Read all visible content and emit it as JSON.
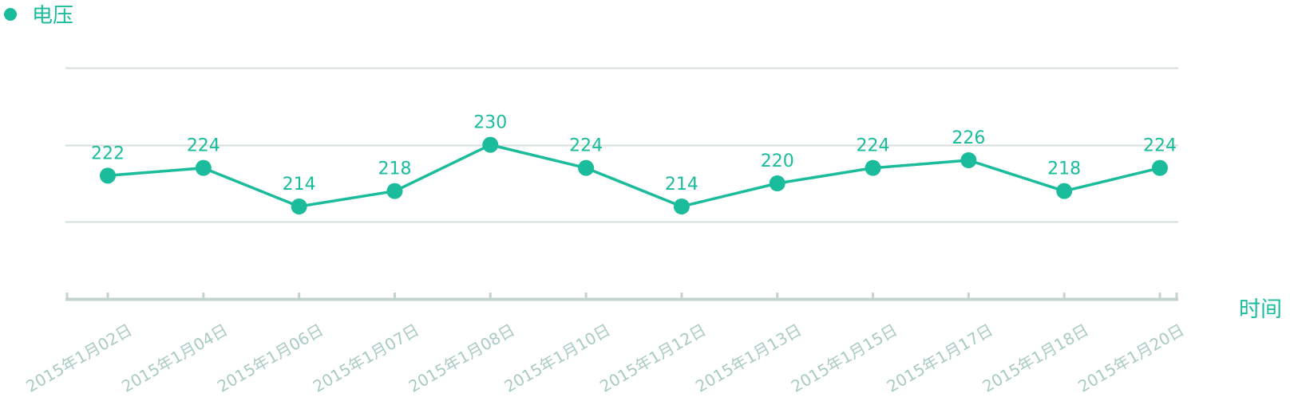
{
  "chart_data": {
    "type": "line",
    "title": "",
    "xlabel": "时间",
    "ylabel": "",
    "ylim": [
      190,
      250
    ],
    "grid": true,
    "legend": "top-left",
    "categories": [
      "2015年1月02日",
      "2015年1月04日",
      "2015年1月06日",
      "2015年1月07日",
      "2015年1月08日",
      "2015年1月10日",
      "2015年1月12日",
      "2015年1月13日",
      "2015年1月15日",
      "2015年1月17日",
      "2015年1月18日",
      "2015年1月20日"
    ],
    "series": [
      {
        "name": "电压",
        "values": [
          222,
          224,
          214,
          218,
          230,
          224,
          214,
          220,
          224,
          226,
          218,
          224
        ]
      }
    ],
    "colors": {
      "series": "#1abc9c",
      "grid": "#d6dcdb",
      "axis": "#c3d3d0",
      "tick_label": "#a9cbc4"
    }
  }
}
